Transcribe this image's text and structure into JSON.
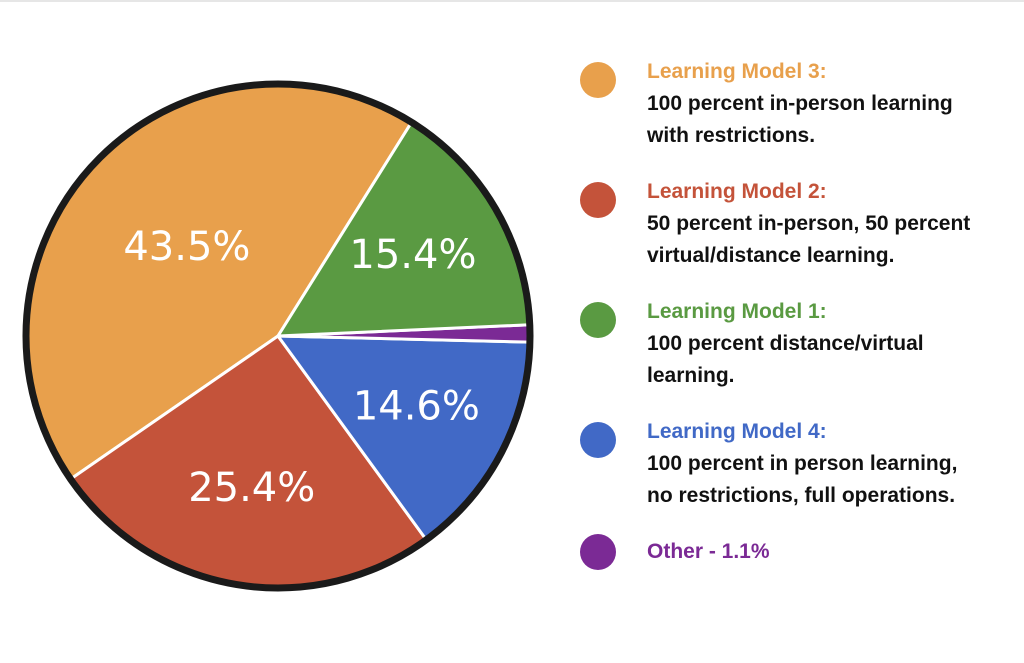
{
  "chart_data": {
    "type": "pie",
    "title": "",
    "slices": [
      {
        "label": "Learning Model 3",
        "value": 43.5,
        "display": "43.5%",
        "color": "#E8A04C"
      },
      {
        "label": "Learning Model 2",
        "value": 25.4,
        "display": "25.4%",
        "color": "#C4533A"
      },
      {
        "label": "Learning Model 4",
        "value": 14.6,
        "display": "14.6%",
        "color": "#4169C6"
      },
      {
        "label": "Other",
        "value": 1.1,
        "display": "",
        "color": "#7B2A95"
      },
      {
        "label": "Learning Model 1",
        "value": 15.4,
        "display": "15.4%",
        "color": "#5A9A42"
      }
    ],
    "start_angle_deg": 58,
    "direction": "counterclockwise",
    "legend_position": "right"
  },
  "legend": {
    "items": [
      {
        "title": "Learning Model 3:",
        "desc": [
          "100 percent in-person learning",
          "with restrictions."
        ],
        "color": "#E8A04C"
      },
      {
        "title": "Learning Model 2:",
        "desc": [
          "50 percent in-person, 50 percent",
          "virtual/distance learning."
        ],
        "color": "#C4533A"
      },
      {
        "title": "Learning Model 1:",
        "desc": [
          "100 percent distance/virtual",
          "learning."
        ],
        "color": "#5A9A42"
      },
      {
        "title": "Learning Model 4:",
        "desc": [
          "100 percent in person learning,",
          "no restrictions, full operations."
        ],
        "color": "#4169C6"
      },
      {
        "title": "Other - 1.1%",
        "desc": [],
        "color": "#7B2A95"
      }
    ]
  }
}
